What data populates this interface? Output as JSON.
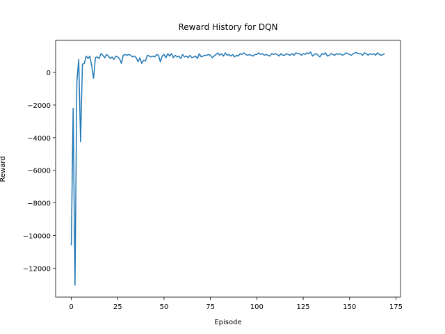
{
  "chart_data": {
    "type": "line",
    "title": "Reward History for DQN",
    "x_label": "Episode",
    "y_label": "Reward",
    "xlim": [
      -8.45,
      177.45
    ],
    "xticks": [
      0,
      25,
      50,
      75,
      100,
      125,
      150,
      175
    ],
    "ylim": [
      -13775,
      1965
    ],
    "yticks": [
      {
        "value": -12000,
        "label": "−12000"
      },
      {
        "value": -10000,
        "label": "−10000"
      },
      {
        "value": -8000,
        "label": "−8000"
      },
      {
        "value": -6000,
        "label": "−6000"
      },
      {
        "value": -4000,
        "label": "−4000"
      },
      {
        "value": -2000,
        "label": "−2000"
      },
      0
    ],
    "grid": false,
    "series": [
      {
        "color": "#1f77b4",
        "values": [
          -10600,
          -2200,
          -13050,
          -600,
          800,
          -4250,
          500,
          550,
          1000,
          850,
          1000,
          400,
          -350,
          900,
          950,
          850,
          1150,
          1050,
          900,
          1100,
          1000,
          850,
          950,
          800,
          1000,
          950,
          850,
          550,
          1050,
          1100,
          1050,
          1100,
          1050,
          950,
          1000,
          900,
          650,
          900,
          550,
          750,
          700,
          1050,
          1000,
          950,
          1000,
          950,
          1100,
          1050,
          650,
          1000,
          1100,
          900,
          1150,
          1000,
          1150,
          900,
          1050,
          950,
          1000,
          850,
          1100,
          950,
          1000,
          900,
          1050,
          900,
          950,
          1000,
          850,
          1150,
          950,
          1000,
          1050,
          1050,
          1100,
          1050,
          900,
          1000,
          1100,
          1200,
          1050,
          1150,
          1000,
          1200,
          1050,
          1100,
          1000,
          1100,
          950,
          1050,
          1000,
          1150,
          1100,
          1200,
          1100,
          1050,
          1100,
          1050,
          1000,
          1100,
          1100,
          1200,
          1100,
          1150,
          1050,
          1100,
          1050,
          1000,
          1150,
          1100,
          1150,
          1100,
          1000,
          1150,
          1050,
          1050,
          1150,
          1100,
          1050,
          1150,
          1050,
          1200,
          1150,
          1150,
          1050,
          1150,
          1100,
          1200,
          1150,
          1250,
          1000,
          1100,
          1150,
          1050,
          950,
          1150,
          1100,
          1200,
          1000,
          1050,
          1150,
          1100,
          1050,
          1150,
          1100,
          1150,
          1050,
          1100,
          1200,
          1150,
          1100,
          1050,
          1150,
          1200,
          1200,
          1150,
          1150,
          1050,
          1200,
          1150,
          1050,
          1150,
          1100,
          1150,
          1050,
          1200,
          1100,
          1050,
          1100,
          1150
        ]
      }
    ]
  }
}
